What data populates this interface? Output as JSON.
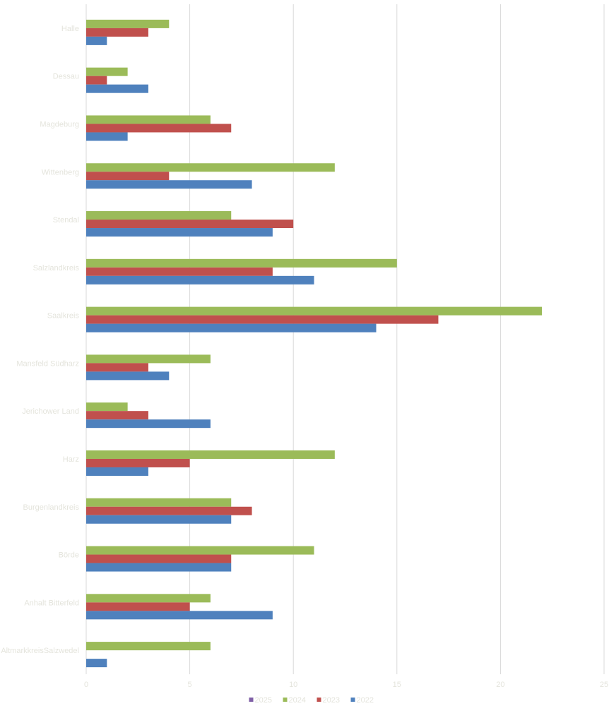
{
  "chart_data": {
    "type": "bar",
    "orientation": "horizontal",
    "categories": [
      "Halle",
      "Dessau",
      "Magdeburg",
      "Wittenberg",
      "Stendal",
      "Salzlandkreis",
      "Saalkreis",
      "Mansfeld Südharz",
      "Jerichower Land",
      "Harz",
      "Burgenlandkreis",
      "Börde",
      "Anhalt Bitterfeld",
      "AltmarkkreisSalzwedel"
    ],
    "series": [
      {
        "name": "2025",
        "color": "#7f5fa6",
        "values": [
          0,
          0,
          0,
          0,
          0,
          0,
          0,
          0,
          0,
          0,
          0,
          0,
          0,
          0
        ]
      },
      {
        "name": "2024",
        "color": "#9bbb59",
        "values": [
          4,
          2,
          6,
          12,
          7,
          15,
          22,
          6,
          2,
          12,
          7,
          11,
          6,
          6
        ]
      },
      {
        "name": "2023",
        "color": "#c0504d",
        "values": [
          3,
          1,
          7,
          4,
          10,
          9,
          17,
          3,
          3,
          5,
          8,
          7,
          5,
          0
        ]
      },
      {
        "name": "2022",
        "color": "#4f81bd",
        "values": [
          1,
          3,
          2,
          8,
          9,
          11,
          14,
          4,
          6,
          3,
          7,
          7,
          9,
          1
        ]
      }
    ],
    "xlim": [
      0,
      25
    ],
    "xticks": [
      "0",
      "5",
      "10",
      "15",
      "20",
      "25"
    ],
    "grid": true,
    "legend_position": "bottom",
    "title": "",
    "xlabel": "",
    "ylabel": ""
  }
}
